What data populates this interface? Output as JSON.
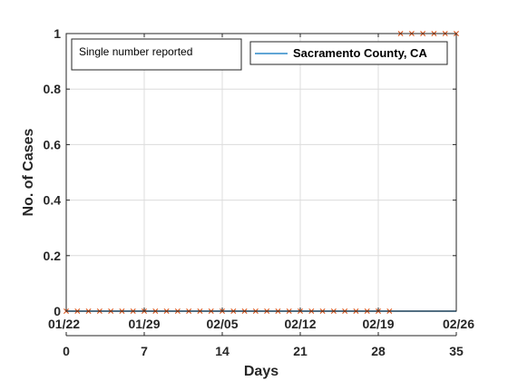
{
  "chart_data": {
    "type": "line",
    "xlabel": "Days",
    "ylabel": "No. of Cases",
    "xlim": [
      0,
      35
    ],
    "ylim": [
      0,
      1
    ],
    "x_ticks": [
      0,
      7,
      14,
      21,
      28,
      35
    ],
    "x_tick_labels": [
      "0",
      "7",
      "14",
      "21",
      "28",
      "35"
    ],
    "date_ticks": [
      0,
      7,
      14,
      21,
      28,
      35
    ],
    "date_tick_labels": [
      "01/22",
      "01/29",
      "02/05",
      "02/12",
      "02/19",
      "02/26"
    ],
    "y_ticks": [
      0,
      0.2,
      0.4,
      0.6,
      0.8,
      1
    ],
    "y_tick_labels": [
      "0",
      "0.2",
      "0.4",
      "0.6",
      "0.8",
      "1"
    ],
    "grid": true,
    "legend_position": "top-right",
    "annotation": "Single number reported",
    "series": [
      {
        "name": "Sacramento County, CA",
        "style": "line",
        "color": "#0072BD",
        "x": [
          0,
          35
        ],
        "y": [
          0,
          0
        ]
      },
      {
        "style": "marker-x",
        "color": "#D95319",
        "x": [
          0,
          1,
          2,
          3,
          4,
          5,
          6,
          7,
          8,
          9,
          10,
          11,
          12,
          13,
          14,
          15,
          16,
          17,
          18,
          19,
          20,
          21,
          22,
          23,
          24,
          25,
          26,
          27,
          28,
          29,
          30,
          31,
          32,
          33,
          34,
          35
        ],
        "y": [
          0,
          0,
          0,
          0,
          0,
          0,
          0,
          0,
          0,
          0,
          0,
          0,
          0,
          0,
          0,
          0,
          0,
          0,
          0,
          0,
          0,
          0,
          0,
          0,
          0,
          0,
          0,
          0,
          0,
          0,
          1,
          1,
          1,
          1,
          1,
          1
        ]
      }
    ]
  }
}
